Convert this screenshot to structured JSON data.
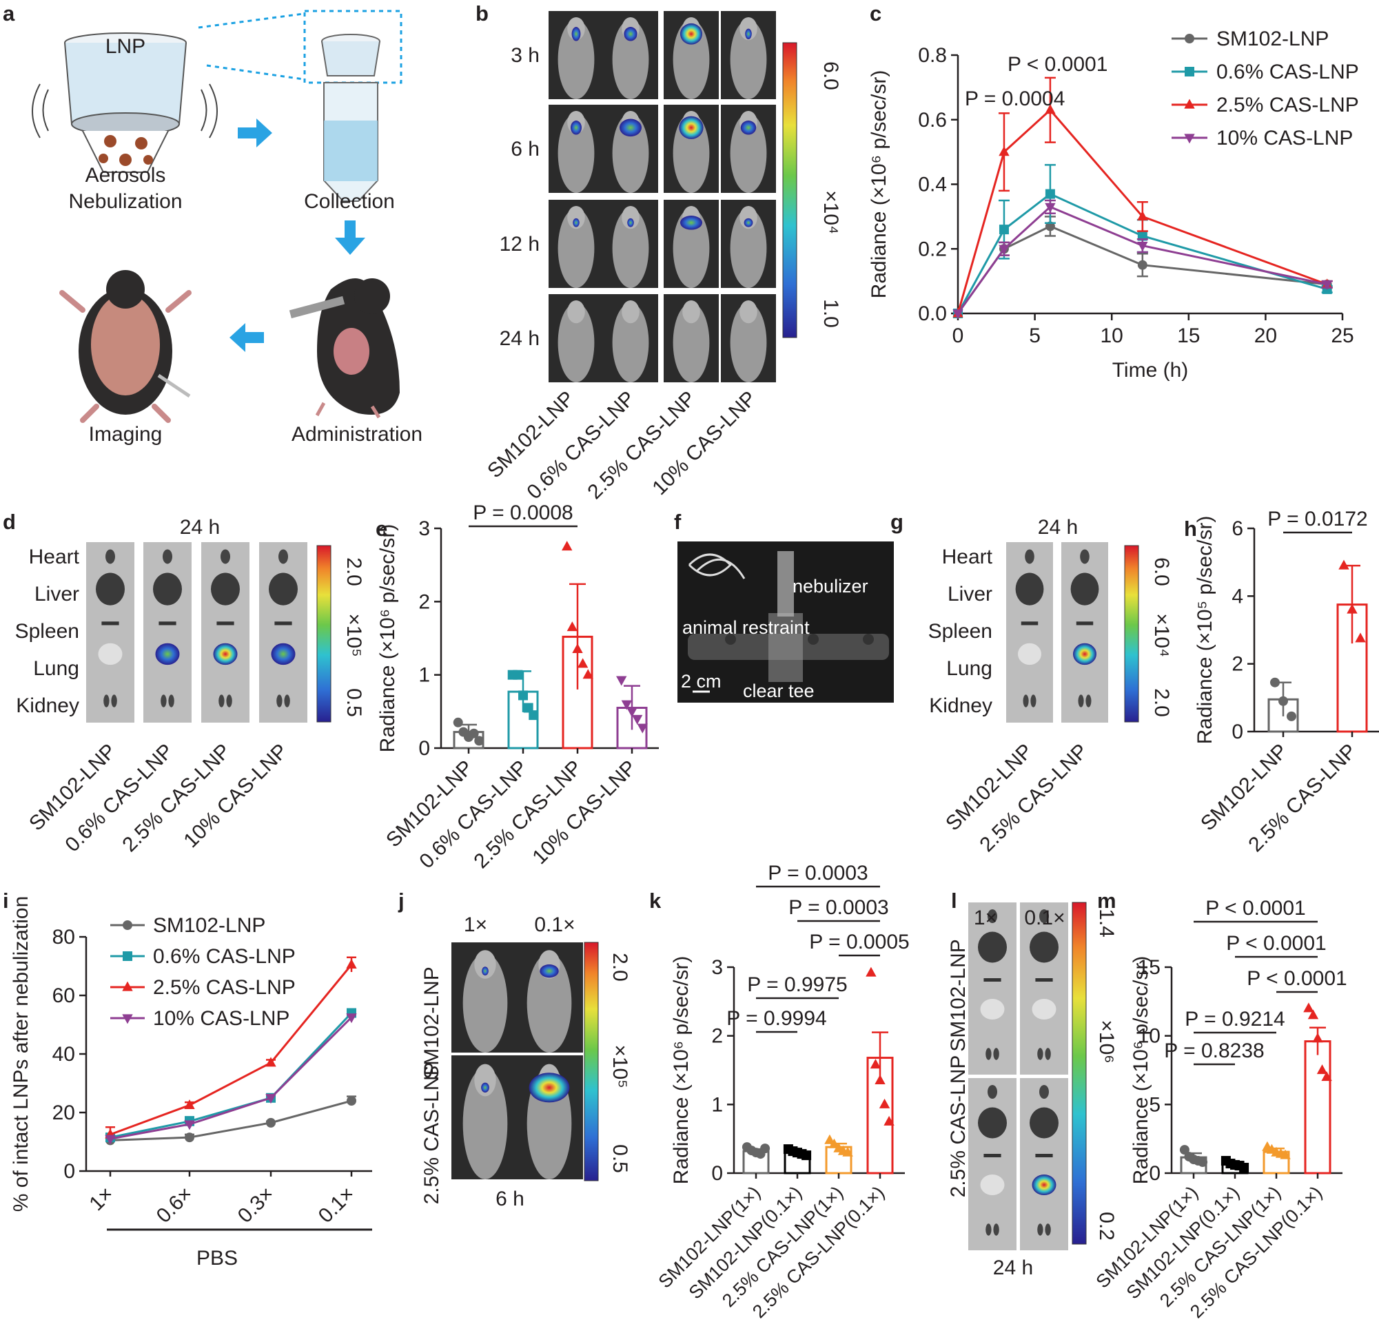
{
  "panels": {
    "a": "a",
    "b": "b",
    "c": "c",
    "d": "d",
    "e": "e",
    "f": "f",
    "g": "g",
    "h": "h",
    "i": "i",
    "j": "j",
    "k": "k",
    "l": "l",
    "m": "m"
  },
  "colors": {
    "SM102-LNP": "#666666",
    "0.6% CAS-LNP": "#1f9aa7",
    "2.5% CAS-LNP": "#e52521",
    "10% CAS-LNP": "#8e3e92",
    "1x_orange": "#f39a2c",
    "black": "#000000"
  },
  "panel_a": {
    "lnp_label": "LNP",
    "step1": "Aerosols",
    "step1b": "Nebulization",
    "step2": "Collection",
    "step3": "Administration",
    "step4": "Imaging"
  },
  "panel_b": {
    "rows": [
      "3 h",
      "6 h",
      "12 h",
      "24 h"
    ],
    "columns": [
      "SM102-LNP",
      "0.6% CAS-LNP",
      "2.5% CAS-LNP",
      "10% CAS-LNP"
    ],
    "scale_max": "6.0",
    "scale_min": "1.0",
    "scale_unit": "×10⁴"
  },
  "panel_d": {
    "time": "24 h",
    "organs": [
      "Heart",
      "Liver",
      "Spleen",
      "Lung",
      "Kidney"
    ],
    "columns": [
      "SM102-LNP",
      "0.6% CAS-LNP",
      "2.5% CAS-LNP",
      "10% CAS-LNP"
    ],
    "scale_max": "2.0",
    "scale_min": "0.5",
    "scale_unit": "×10⁵"
  },
  "panel_f": {
    "labels": {
      "nebulizer": "nebulizer",
      "restraint": "animal restraint",
      "scale": "2 cm",
      "tee": "clear tee"
    }
  },
  "panel_g": {
    "time": "24 h",
    "organs": [
      "Heart",
      "Liver",
      "Spleen",
      "Lung",
      "Kidney"
    ],
    "columns": [
      "SM102-LNP",
      "2.5% CAS-LNP"
    ],
    "scale_max": "6.0",
    "scale_min": "2.0",
    "scale_unit": "×10⁴"
  },
  "panel_j": {
    "row_labels": [
      "SM102-LNP",
      "2.5% CAS-LNP"
    ],
    "col_labels": [
      "1×",
      "0.1×"
    ],
    "time": "6 h",
    "scale_max": "2.0",
    "scale_min": "0.5",
    "scale_unit": "×10⁵"
  },
  "panel_l": {
    "row_labels": [
      "SM102-LNP",
      "2.5% CAS-LNP"
    ],
    "col_labels": [
      "1×",
      "0.1×"
    ],
    "time": "24 h",
    "scale_max": "1.4",
    "scale_min": "0.2",
    "scale_unit": "×10⁶"
  },
  "chart_data": [
    {
      "panel": "c",
      "type": "line",
      "xlabel": "Time (h)",
      "ylabel": "Radiance (×10⁶ p/sec/sr)",
      "xlim": [
        0,
        25
      ],
      "ylim": [
        0,
        0.8
      ],
      "xticks": [
        "0",
        "5",
        "10",
        "15",
        "20",
        "25"
      ],
      "yticks": [
        "0.0",
        "0.2",
        "0.4",
        "0.6",
        "0.8"
      ],
      "x": [
        0,
        3,
        6,
        12,
        24
      ],
      "series": [
        {
          "name": "SM102-LNP",
          "values": [
            0,
            0.2,
            0.27,
            0.15,
            0.09
          ],
          "err": [
            0,
            0.02,
            0.03,
            0.035,
            0.01
          ],
          "marker": "circle"
        },
        {
          "name": "0.6% CAS-LNP",
          "values": [
            0,
            0.26,
            0.37,
            0.24,
            0.075
          ],
          "err": [
            0,
            0.09,
            0.09,
            0.05,
            0.01
          ],
          "marker": "square"
        },
        {
          "name": "2.5% CAS-LNP",
          "values": [
            0,
            0.5,
            0.63,
            0.3,
            0.09
          ],
          "err": [
            0,
            0.12,
            0.1,
            0.045,
            0.01
          ],
          "marker": "triangle"
        },
        {
          "name": "10% CAS-LNP",
          "values": [
            0,
            0.2,
            0.33,
            0.21,
            0.09
          ],
          "err": [
            0,
            0.02,
            0.02,
            0.02,
            0.01
          ],
          "marker": "invtriangle"
        }
      ],
      "annotations": [
        "P = 0.0004",
        "P < 0.0001"
      ],
      "legend": "top-right"
    },
    {
      "panel": "e",
      "type": "bar",
      "ylabel": "Radiance (×10⁶ p/sec/sr)",
      "ylim": [
        0,
        3
      ],
      "yticks": [
        "0",
        "1",
        "2",
        "3"
      ],
      "categories": [
        "SM102-LNP",
        "0.6% CAS-LNP",
        "2.5% CAS-LNP",
        "10% CAS-LNP"
      ],
      "values": [
        0.22,
        0.77,
        1.52,
        0.55
      ],
      "err": [
        0.1,
        0.28,
        0.72,
        0.3
      ],
      "points": [
        [
          0.35,
          0.22,
          0.15,
          0.2,
          0.1
        ],
        [
          1.0,
          1.0,
          0.72,
          0.55,
          0.45
        ],
        [
          2.75,
          1.65,
          1.35,
          1.15,
          1.0
        ],
        [
          0.93,
          0.6,
          0.5,
          0.4,
          0.28
        ]
      ],
      "annotations": [
        "P = 0.0008"
      ]
    },
    {
      "panel": "h",
      "type": "bar",
      "ylabel": "Radiance (×10⁵ p/sec/sr)",
      "ylim": [
        0,
        6
      ],
      "yticks": [
        "0",
        "2",
        "4",
        "6"
      ],
      "categories": [
        "SM102-LNP",
        "2.5% CAS-LNP"
      ],
      "values": [
        0.95,
        3.75
      ],
      "err": [
        0.5,
        1.15
      ],
      "points": [
        [
          1.45,
          0.9,
          0.45
        ],
        [
          4.9,
          3.6,
          2.75
        ]
      ],
      "annotations": [
        "P = 0.0172"
      ]
    },
    {
      "panel": "i",
      "type": "line",
      "ylabel": "% of intact LNPs after nebulization",
      "xlabel": "PBS",
      "ylim": [
        0,
        80
      ],
      "yticks": [
        "0",
        "20",
        "40",
        "60",
        "80"
      ],
      "categories": [
        "1×",
        "0.6×",
        "0.3×",
        "0.1×"
      ],
      "series": [
        {
          "name": "SM102-LNP",
          "values": [
            10.5,
            11.5,
            16.5,
            24
          ],
          "err": [
            0.5,
            1,
            0.5,
            1.5
          ],
          "marker": "circle"
        },
        {
          "name": "0.6% CAS-LNP",
          "values": [
            11.5,
            17,
            25,
            54
          ],
          "err": [
            1,
            1.5,
            1,
            1
          ],
          "marker": "square"
        },
        {
          "name": "2.5% CAS-LNP",
          "values": [
            12.5,
            22.5,
            37,
            70.5
          ],
          "err": [
            2.5,
            1,
            1,
            2.5
          ],
          "marker": "triangle"
        },
        {
          "name": "10% CAS-LNP",
          "values": [
            11,
            16,
            25,
            52.5
          ],
          "err": [
            1,
            1,
            1,
            1
          ],
          "marker": "invtriangle"
        }
      ],
      "legend": "top-left"
    },
    {
      "panel": "k",
      "type": "bar",
      "ylabel": "Radiance (×10⁶ p/sec/sr)",
      "ylim": [
        0,
        3
      ],
      "yticks": [
        "0",
        "1",
        "2",
        "3"
      ],
      "categories": [
        "SM102-LNP(1×)",
        "SM102-LNP(0.1×)",
        "2.5% CAS-LNP(1×)",
        "2.5% CAS-LNP(0.1×)"
      ],
      "values": [
        0.32,
        0.3,
        0.38,
        1.68
      ],
      "err": [
        0.03,
        0.03,
        0.05,
        0.37
      ],
      "points": [
        [
          0.38,
          0.33,
          0.3,
          0.28,
          0.36
        ],
        [
          0.35,
          0.32,
          0.3,
          0.28,
          0.26
        ],
        [
          0.48,
          0.42,
          0.36,
          0.32,
          0.3
        ],
        [
          2.92,
          1.58,
          1.35,
          1.0,
          0.75
        ]
      ],
      "annotations": [
        "P = 0.0003",
        "P = 0.0003",
        "P = 0.0005",
        "P = 0.9975",
        "P = 0.9994"
      ]
    },
    {
      "panel": "m",
      "type": "bar",
      "ylabel": "Radiance (×10⁶ p/sec/sr)",
      "ylim": [
        0,
        15
      ],
      "yticks": [
        "0",
        "5",
        "10",
        "15"
      ],
      "categories": [
        "SM102-LNP(1×)",
        "SM102-LNP(0.1×)",
        "2.5% CAS-LNP(1×)",
        "2.5% CAS-LNP(0.1×)"
      ],
      "values": [
        1.15,
        0.65,
        1.55,
        9.6
      ],
      "err": [
        0.3,
        0.15,
        0.25,
        1.0
      ],
      "points": [
        [
          1.7,
          1.2,
          1.0,
          0.9,
          0.8
        ],
        [
          0.9,
          0.7,
          0.6,
          0.55,
          0.4
        ],
        [
          1.9,
          1.7,
          1.5,
          1.4,
          1.3
        ],
        [
          12.0,
          11.5,
          9.8,
          7.5,
          7.0
        ]
      ],
      "annotations": [
        "P < 0.0001",
        "P < 0.0001",
        "P < 0.0001",
        "P = 0.9214",
        "P = 0.8238"
      ]
    }
  ]
}
